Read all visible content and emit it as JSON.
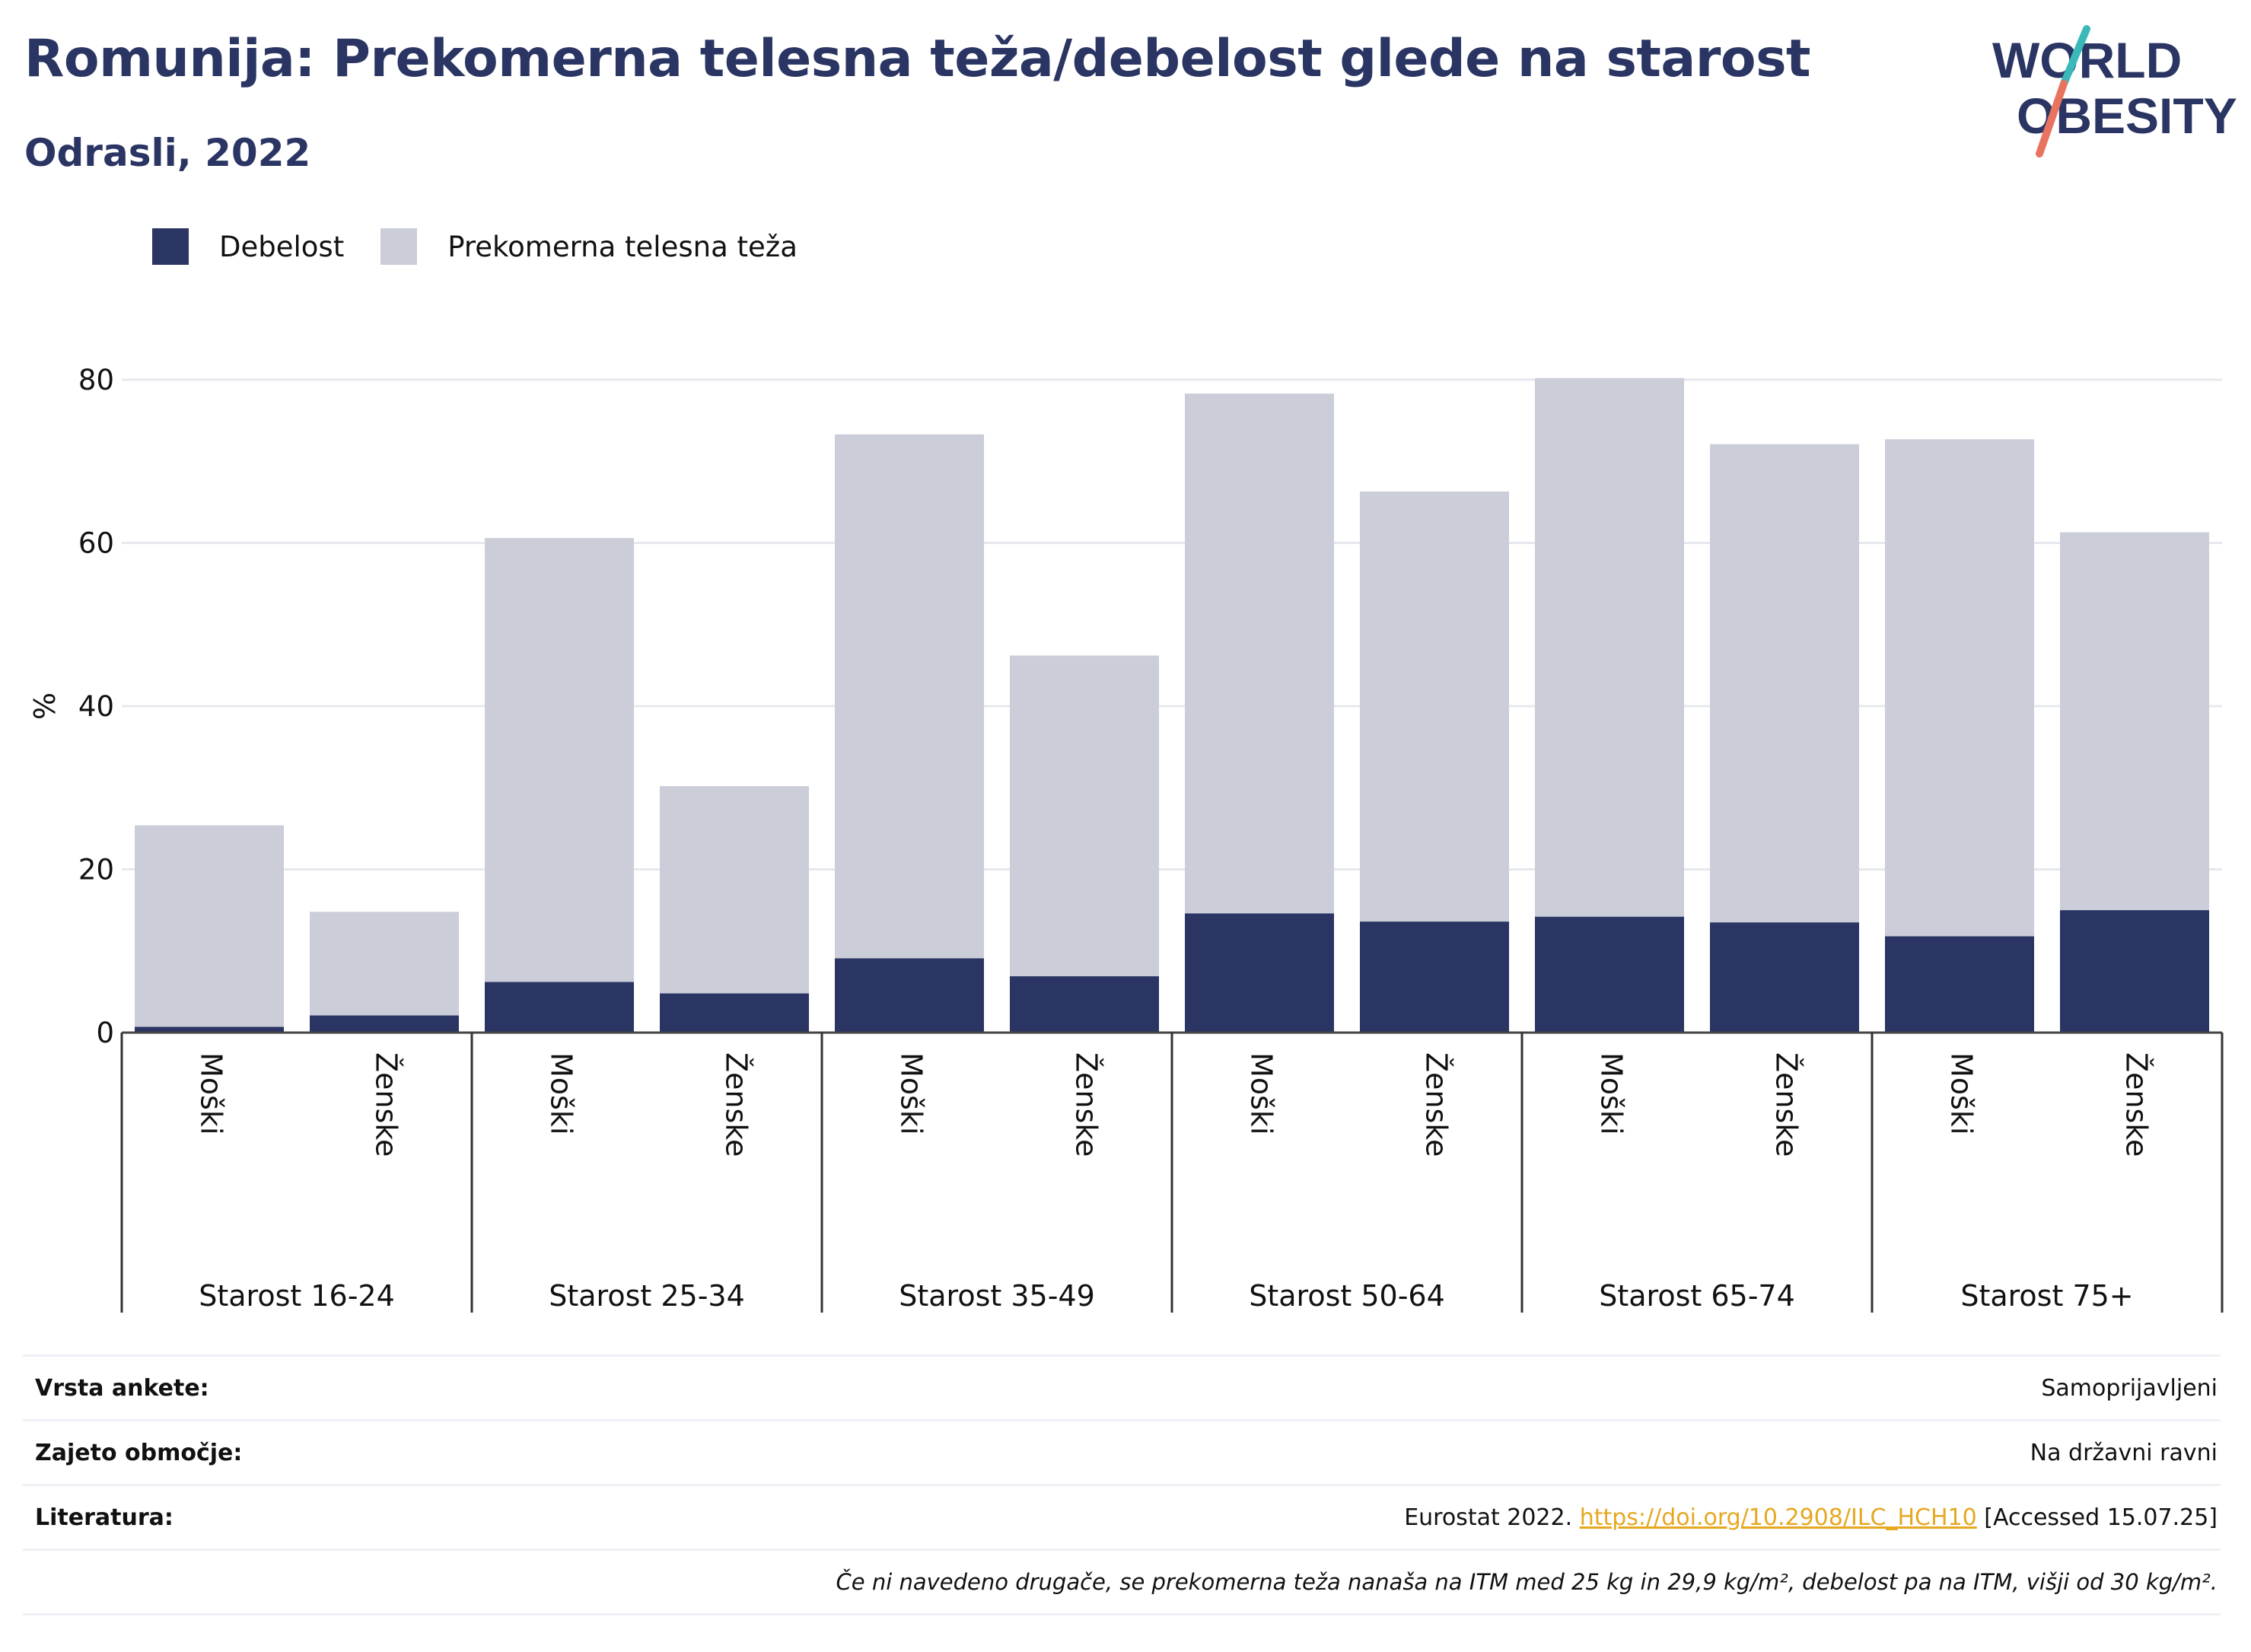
{
  "header": {
    "title": "Romunija: Prekomerna telesna teža/debelost glede na starost",
    "subtitle": "Odrasli, 2022"
  },
  "logo": {
    "line1": "WORLD",
    "line2": "OBESITY",
    "colors": {
      "text": "#2a3563",
      "slash_teal": "#3bb8b8",
      "slash_coral": "#e8735f"
    }
  },
  "legend": [
    {
      "label": "Debelost",
      "color": "#2a3563"
    },
    {
      "label": "Prekomerna telesna teža",
      "color": "#cbcdd9"
    }
  ],
  "chart_data": {
    "type": "bar",
    "stacked": true,
    "ylabel": "%",
    "ylim": [
      0,
      80
    ],
    "yticks": [
      0,
      20,
      40,
      60,
      80
    ],
    "grid": true,
    "legend_position": "top-left",
    "groups": [
      "Starost 16-24",
      "Starost 25-34",
      "Starost 35-49",
      "Starost 50-64",
      "Starost 65-74",
      "Starost 75+"
    ],
    "categories": [
      "Moški",
      "Ženske",
      "Moški",
      "Ženske",
      "Moški",
      "Ženske",
      "Moški",
      "Ženske",
      "Moški",
      "Ženske",
      "Moški",
      "Ženske"
    ],
    "series": [
      {
        "name": "Debelost",
        "color": "#2a3563",
        "values": [
          0.7,
          2.1,
          6.2,
          4.8,
          9.1,
          6.9,
          14.6,
          13.6,
          14.2,
          13.5,
          11.8,
          15.0
        ]
      },
      {
        "name": "Prekomerna telesna teža",
        "color": "#cbcdd9",
        "values": [
          24.7,
          12.7,
          54.4,
          25.4,
          64.2,
          39.3,
          63.7,
          52.7,
          66.0,
          58.6,
          60.9,
          46.3
        ]
      }
    ],
    "totals": [
      25.4,
      14.8,
      60.6,
      30.2,
      73.3,
      46.2,
      78.3,
      66.3,
      80.2,
      72.1,
      72.7,
      61.3
    ]
  },
  "meta": {
    "rows": [
      {
        "label": "Vrsta ankete:",
        "value": "Samoprijavljeni"
      },
      {
        "label": "Zajeto območje:",
        "value": "Na državni ravni"
      }
    ],
    "reference": {
      "label": "Literatura:",
      "prefix": "Eurostat 2022. ",
      "link": "https://doi.org/10.2908/ILC_HCH10",
      "suffix": " [Accessed 15.07.25]"
    },
    "note": "Če ni navedeno drugače, se prekomerna teža nanaša na ITM med 25 kg in 29,9 kg/m², debelost pa na ITM, višji od 30 kg/m²."
  }
}
